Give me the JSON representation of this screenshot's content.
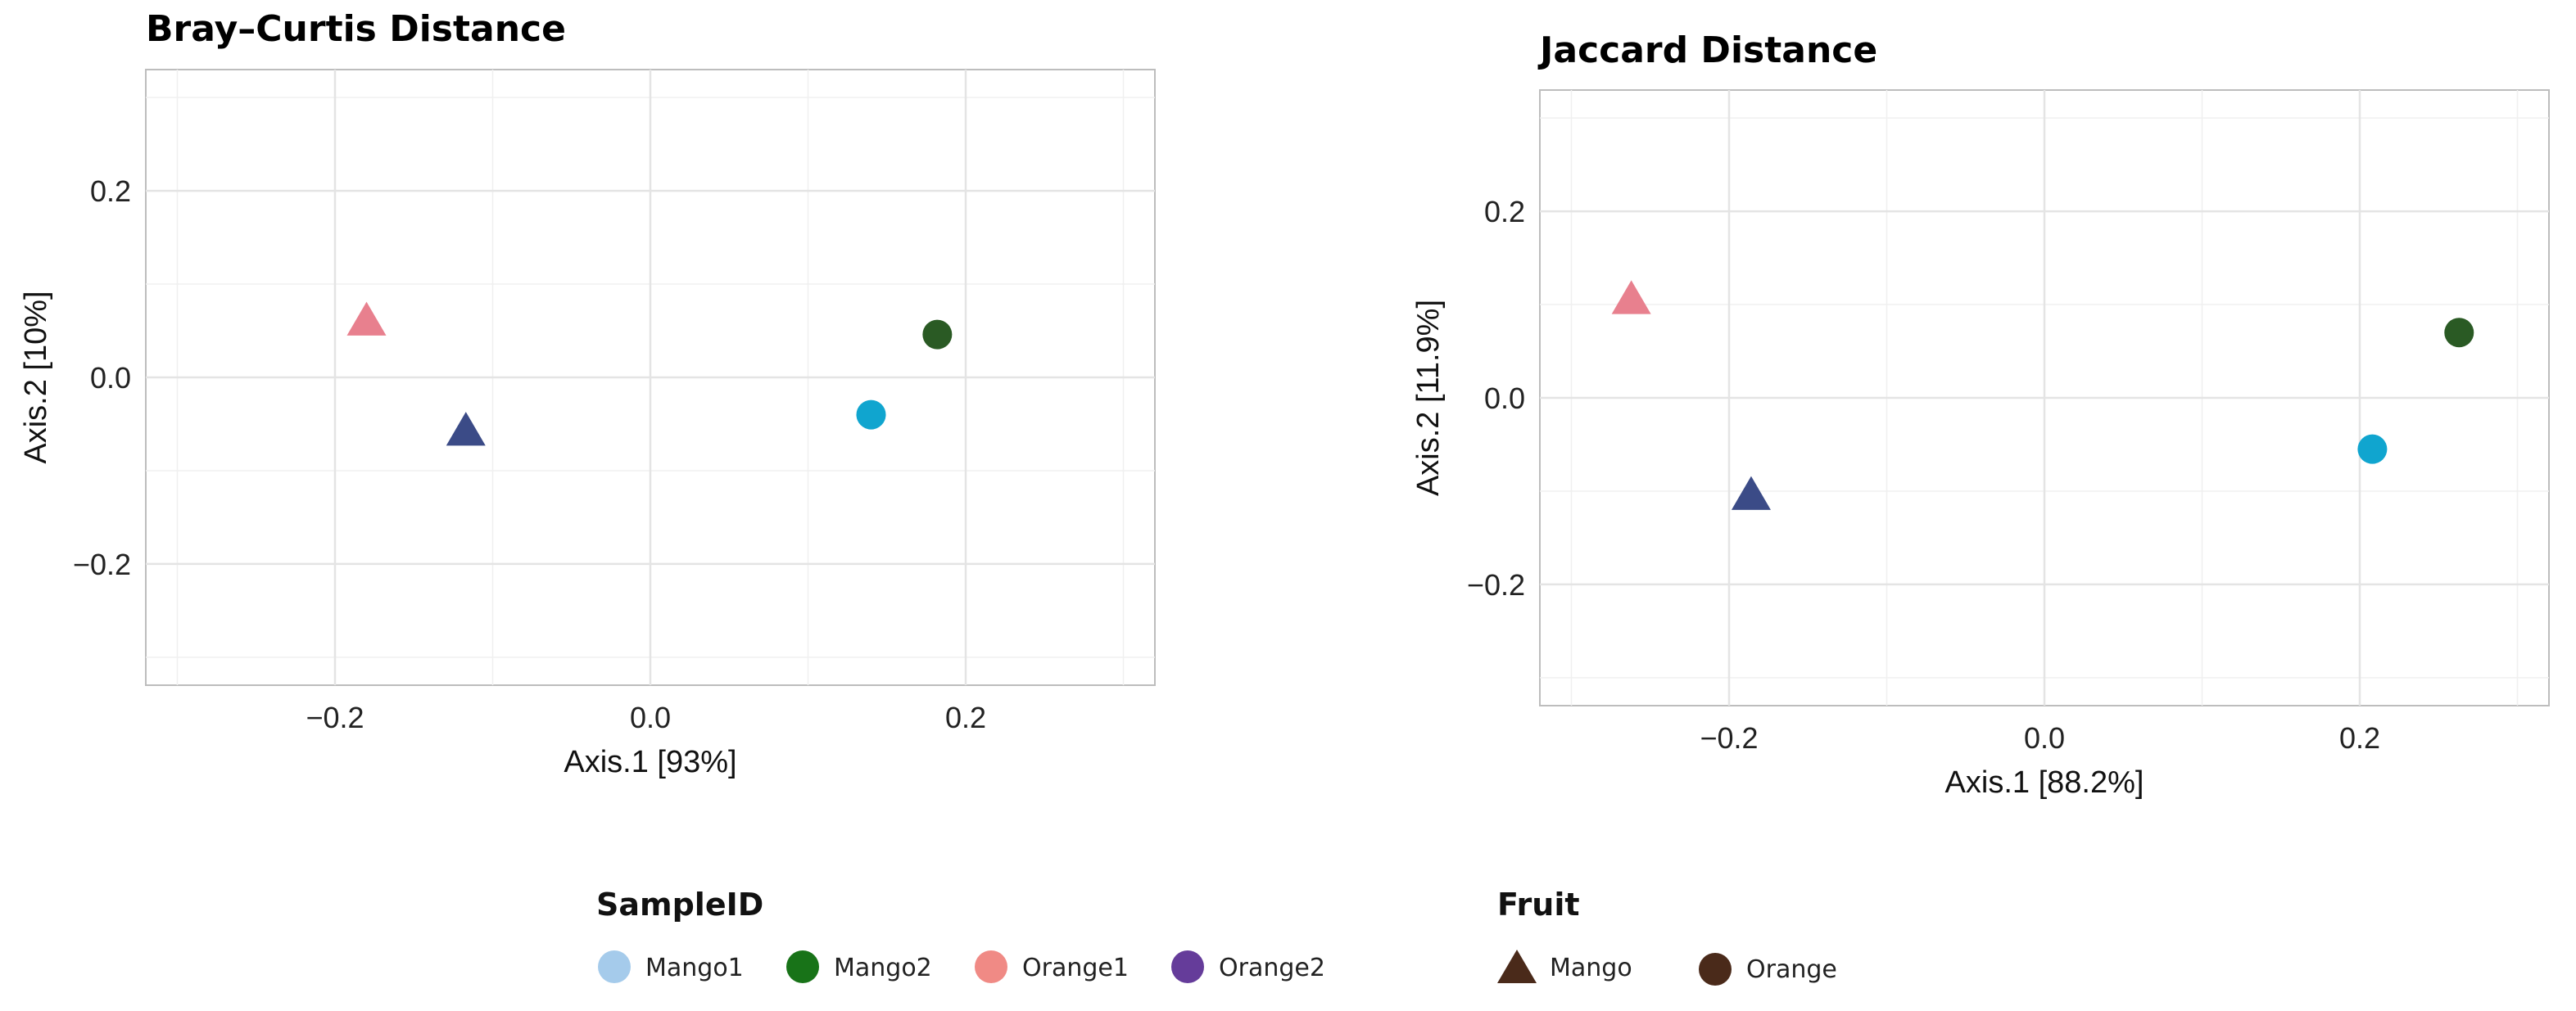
{
  "chart_data": [
    {
      "type": "scatter",
      "title": "Bray–Curtis Distance",
      "xlabel": "Axis.1   [93%]",
      "ylabel": "Axis.2   [10%]",
      "xlim": [
        -0.32,
        0.32
      ],
      "ylim": [
        -0.33,
        0.33
      ],
      "xticks": [
        -0.2,
        0.0,
        0.2
      ],
      "xtick_labels": [
        "−0.2",
        "0.0",
        "0.2"
      ],
      "yticks": [
        -0.2,
        0.0,
        0.2
      ],
      "ytick_labels": [
        "−0.2",
        "0.0",
        "0.2"
      ],
      "grid": true,
      "points": [
        {
          "sample": "Orange1",
          "fruit": "Mango",
          "x": -0.18,
          "y": 0.06,
          "color": "#E8808E"
        },
        {
          "sample": "Orange2",
          "fruit": "Mango",
          "x": -0.117,
          "y": -0.058,
          "color": "#3B4B87"
        },
        {
          "sample": "Mango1",
          "fruit": "Orange",
          "x": 0.14,
          "y": -0.04,
          "color": "#10A5CF"
        },
        {
          "sample": "Mango2",
          "fruit": "Orange",
          "x": 0.182,
          "y": 0.046,
          "color": "#2A5A24"
        }
      ]
    },
    {
      "type": "scatter",
      "title": "Jaccard Distance",
      "xlabel": "Axis.1   [88.2%]",
      "ylabel": "Axis.2   [11.9%]",
      "xlim": [
        -0.32,
        0.32
      ],
      "ylim": [
        -0.33,
        0.33
      ],
      "xticks": [
        -0.2,
        0.0,
        0.2
      ],
      "xtick_labels": [
        "−0.2",
        "0.0",
        "0.2"
      ],
      "yticks": [
        -0.2,
        0.0,
        0.2
      ],
      "ytick_labels": [
        "−0.2",
        "0.0",
        "0.2"
      ],
      "grid": true,
      "points": [
        {
          "sample": "Orange1",
          "fruit": "Mango",
          "x": -0.262,
          "y": 0.105,
          "color": "#E8808E"
        },
        {
          "sample": "Orange2",
          "fruit": "Mango",
          "x": -0.186,
          "y": -0.105,
          "color": "#3B4B87"
        },
        {
          "sample": "Mango1",
          "fruit": "Orange",
          "x": 0.208,
          "y": -0.055,
          "color": "#10A5CF"
        },
        {
          "sample": "Mango2",
          "fruit": "Orange",
          "x": 0.263,
          "y": 0.07,
          "color": "#2A5A24"
        }
      ]
    }
  ],
  "legend": {
    "sample": {
      "title": "SampleID",
      "items": [
        {
          "label": "Mango1",
          "color": "#A5CBEB"
        },
        {
          "label": "Mango2",
          "color": "#187318"
        },
        {
          "label": "Orange1",
          "color": "#F08A85"
        },
        {
          "label": "Orange2",
          "color": "#653C9A"
        }
      ]
    },
    "fruit": {
      "title": "Fruit",
      "color": "#4A2A1A",
      "items": [
        {
          "label": "Mango",
          "shape": "triangle"
        },
        {
          "label": "Orange",
          "shape": "circle"
        }
      ]
    }
  }
}
